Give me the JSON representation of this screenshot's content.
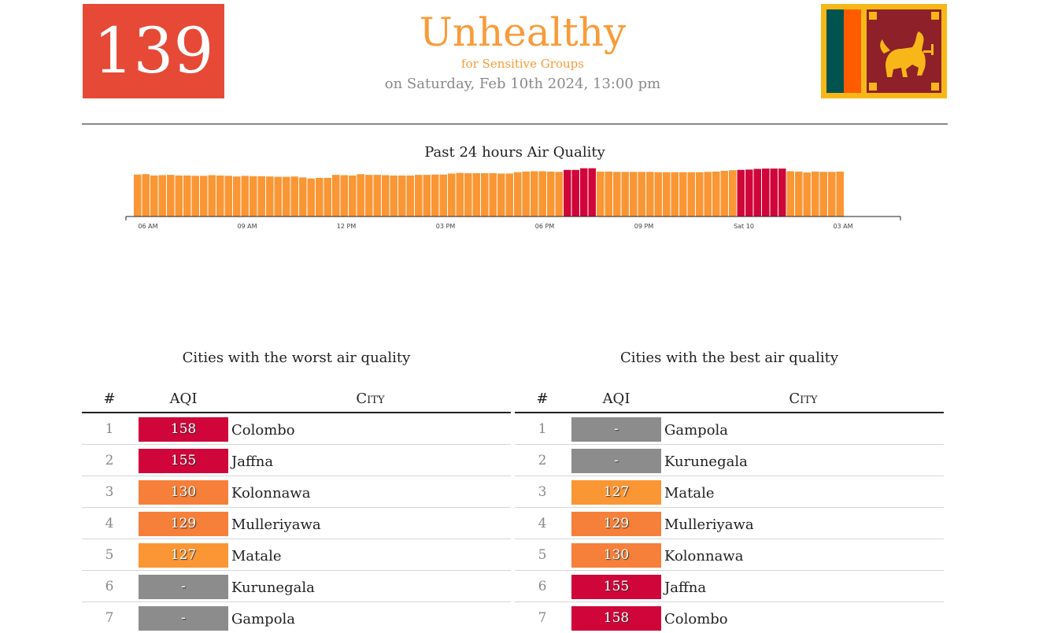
{
  "header": {
    "aqi_value": "139",
    "level": "Unhealthy",
    "level_sub": "for Sensitive Groups",
    "timestamp": "on Saturday, Feb 10th 2024, 13:00 pm",
    "flag_icon": "sri-lanka-flag-icon",
    "color_aqi_box": "#e64a37",
    "color_level": "#f99b3a"
  },
  "history": {
    "title": "Past 24 hours Air Quality",
    "tick_labels": [
      "06 AM",
      "09 AM",
      "12 PM",
      "03 PM",
      "06 PM",
      "09 PM",
      "Sat 10",
      "03 AM"
    ],
    "colors": {
      "orange": "#fb9634",
      "red": "#d0053a"
    }
  },
  "chart_data": {
    "type": "bar",
    "title": "Past 24 hours Air Quality",
    "x_ticks": [
      "06 AM",
      "09 AM",
      "12 PM",
      "03 PM",
      "06 PM",
      "09 PM",
      "Sat 10",
      "03 AM"
    ],
    "values": [
      127,
      128,
      124,
      125,
      126,
      124,
      124,
      123,
      123,
      125,
      124,
      123,
      121,
      123,
      122,
      122,
      121,
      120,
      120,
      121,
      118,
      115,
      117,
      117,
      126,
      125,
      124,
      128,
      126,
      126,
      125,
      124,
      124,
      124,
      126,
      126,
      127,
      127,
      130,
      132,
      131,
      131,
      131,
      131,
      130,
      130,
      134,
      136,
      137,
      137,
      136,
      135,
      141,
      141,
      146,
      146,
      136,
      136,
      135,
      135,
      135,
      135,
      135,
      134,
      134,
      134,
      134,
      134,
      134,
      135,
      136,
      138,
      140,
      141,
      142,
      144,
      145,
      145,
      145,
      137,
      136,
      133,
      136,
      135,
      135,
      136
    ],
    "unhealthy_threshold": 150,
    "bar_colors_by_range": {
      "101-150": "#fb9634",
      "151-200": "#d0053a"
    }
  },
  "worst": {
    "title": "Cities with the worst air quality",
    "headers": {
      "rank": "#",
      "aqi": "AQI",
      "city": "City"
    },
    "rows": [
      {
        "rank": "1",
        "aqi": "158",
        "city": "Colombo",
        "color": "#d0053a"
      },
      {
        "rank": "2",
        "aqi": "155",
        "city": "Jaffna",
        "color": "#d0053a"
      },
      {
        "rank": "3",
        "aqi": "130",
        "city": "Kolonnawa",
        "color": "#f6803a"
      },
      {
        "rank": "4",
        "aqi": "129",
        "city": "Mulleriyawa",
        "color": "#f6803a"
      },
      {
        "rank": "5",
        "aqi": "127",
        "city": "Matale",
        "color": "#fb9634"
      },
      {
        "rank": "6",
        "aqi": "-",
        "city": "Kurunegala",
        "color": "#8c8c8c"
      },
      {
        "rank": "7",
        "aqi": "-",
        "city": "Gampola",
        "color": "#8c8c8c"
      }
    ]
  },
  "best": {
    "title": "Cities with the best air quality",
    "headers": {
      "rank": "#",
      "aqi": "AQI",
      "city": "City"
    },
    "rows": [
      {
        "rank": "1",
        "aqi": "-",
        "city": "Gampola",
        "color": "#8c8c8c"
      },
      {
        "rank": "2",
        "aqi": "-",
        "city": "Kurunegala",
        "color": "#8c8c8c"
      },
      {
        "rank": "3",
        "aqi": "127",
        "city": "Matale",
        "color": "#fb9634"
      },
      {
        "rank": "4",
        "aqi": "129",
        "city": "Mulleriyawa",
        "color": "#f6803a"
      },
      {
        "rank": "5",
        "aqi": "130",
        "city": "Kolonnawa",
        "color": "#f6803a"
      },
      {
        "rank": "6",
        "aqi": "155",
        "city": "Jaffna",
        "color": "#d0053a"
      },
      {
        "rank": "7",
        "aqi": "158",
        "city": "Colombo",
        "color": "#d0053a"
      }
    ]
  }
}
